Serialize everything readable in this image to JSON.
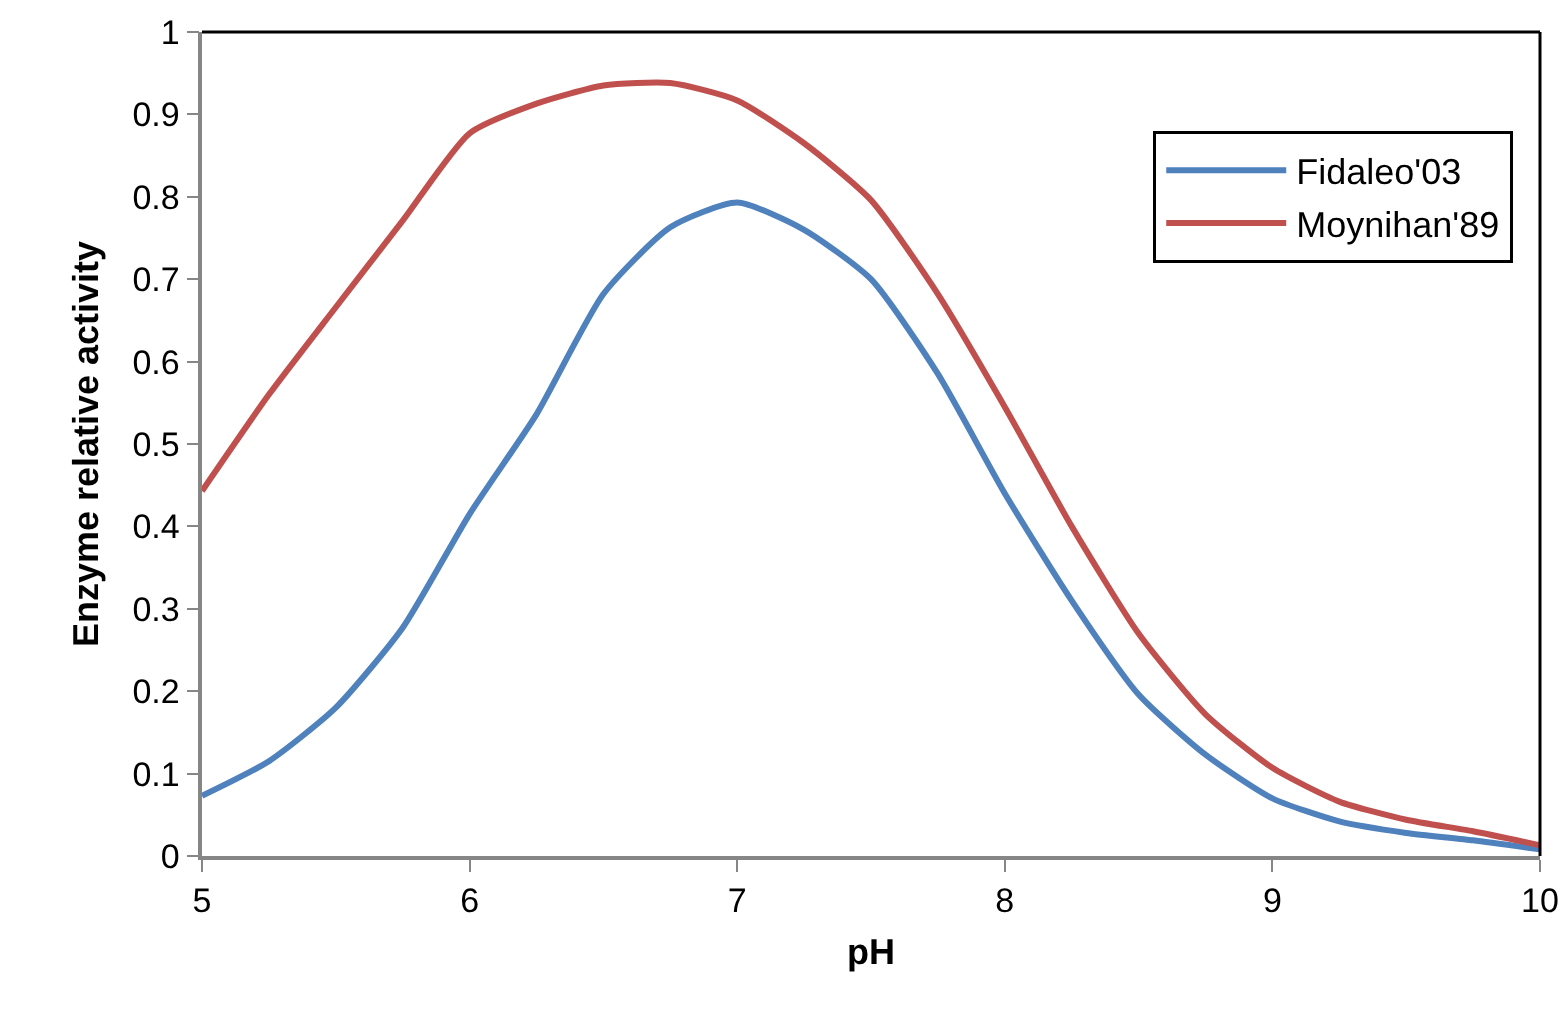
{
  "chart_data": {
    "type": "line",
    "xlabel": "pH",
    "ylabel": "Enzyme relative activity",
    "x": [
      5,
      5.25,
      5.5,
      5.75,
      6,
      6.25,
      6.5,
      6.75,
      7,
      7.25,
      7.5,
      7.75,
      8,
      8.25,
      8.5,
      8.75,
      9,
      9.25,
      9.5,
      9.75,
      10
    ],
    "series": [
      {
        "name": "Fidaleo'03",
        "color": "#4f81bd",
        "values": [
          0.073,
          0.115,
          0.18,
          0.277,
          0.415,
          0.536,
          0.682,
          0.763,
          0.793,
          0.76,
          0.7,
          0.585,
          0.44,
          0.31,
          0.196,
          0.123,
          0.07,
          0.042,
          0.028,
          0.019,
          0.008
        ]
      },
      {
        "name": "Moynihan'89",
        "color": "#c0504d",
        "values": [
          0.443,
          0.56,
          0.666,
          0.771,
          0.877,
          0.913,
          0.935,
          0.938,
          0.917,
          0.865,
          0.796,
          0.682,
          0.545,
          0.4,
          0.27,
          0.172,
          0.107,
          0.066,
          0.044,
          0.03,
          0.013
        ]
      }
    ],
    "xlim": [
      5,
      10
    ],
    "xticks": [
      5,
      6,
      7,
      8,
      9,
      10
    ],
    "ylim": [
      0,
      1
    ],
    "yticks": [
      0,
      0.1,
      0.2,
      0.3,
      0.4,
      0.5,
      0.6,
      0.7,
      0.8,
      0.9,
      1
    ],
    "grid": false,
    "legend": "top right",
    "marker": "none",
    "line_style": "solid"
  }
}
